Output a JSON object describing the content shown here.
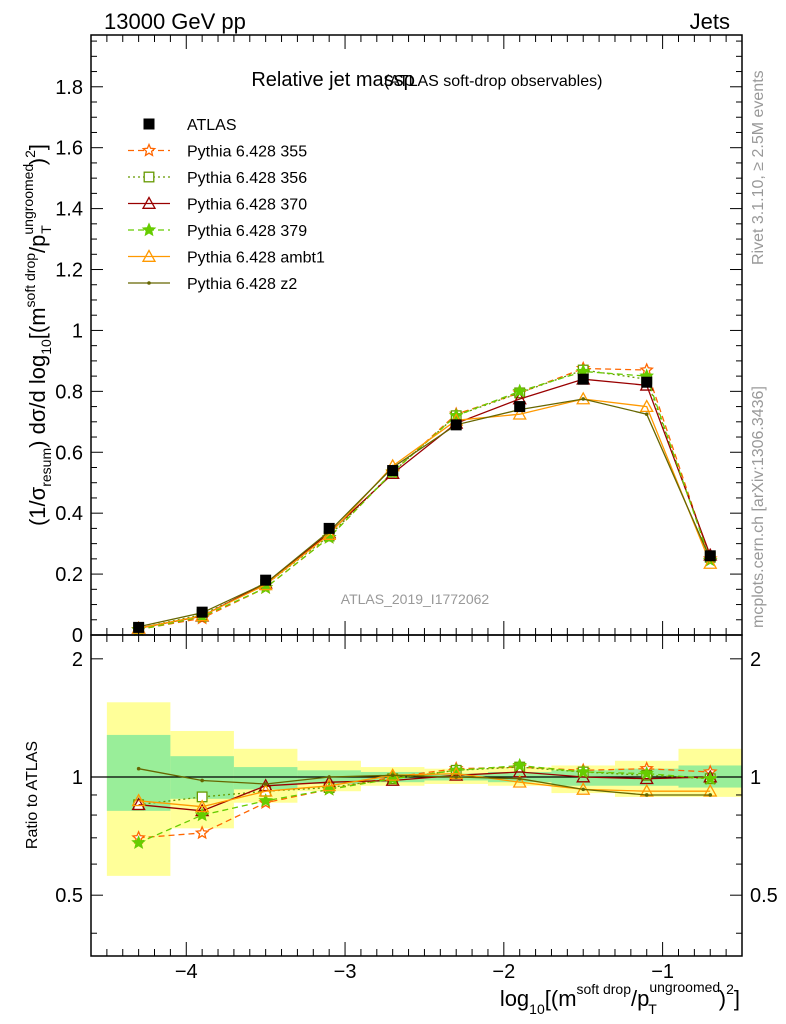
{
  "header": {
    "left": "13000 GeV pp",
    "right": "Jets"
  },
  "title": {
    "main": "Relative jet massρ",
    "sub": "(ATLAS soft-drop observables)"
  },
  "side_labels": {
    "rivet": "Rivet 3.1.10, ≥ 2.5M events",
    "mcplots": "mcplots.cern.ch [arXiv:1306.3436]"
  },
  "watermark": "ATLAS_2019_I1772062",
  "axes": {
    "ylabel": {
      "a": "(1/σ",
      "a_sub": "resum",
      "b": ") dσ/d log",
      "b_sub": "10",
      "c": "[(m",
      "c_sup": "soft drop",
      "d": "/p",
      "d_sup": "ungroomed",
      "d_sub": "T",
      "e": ")",
      "e_sup": "2",
      "f": "]"
    },
    "xlabel": {
      "a": "log",
      "a_sub": "10",
      "b": "[(m",
      "b_sup": "soft drop",
      "c": "/p",
      "c_sup": "ungroomed",
      "c_sub": "T",
      "d": ")",
      "d_sup": "2",
      "e": "]"
    },
    "ratio_ylabel": "Ratio to ATLAS",
    "main_yticks": [
      "0",
      "0.2",
      "0.4",
      "0.6",
      "0.8",
      "1",
      "1.2",
      "1.4",
      "1.6",
      "1.8"
    ],
    "ratio_yticks": [
      "0.5",
      "1",
      "2"
    ],
    "xticks": [
      "−4",
      "−3",
      "−2",
      "−1"
    ]
  },
  "chart_data": {
    "type": "line",
    "x": [
      -4.3,
      -3.9,
      -3.5,
      -3.1,
      -2.7,
      -2.3,
      -1.9,
      -1.5,
      -1.1,
      -0.7
    ],
    "bin_edges": [
      -4.5,
      -4.1,
      -3.7,
      -3.3,
      -2.9,
      -2.5,
      -2.1,
      -1.7,
      -1.3,
      -0.9,
      -0.5
    ],
    "xlim": [
      -4.6,
      -0.5
    ],
    "ylim": [
      0,
      1.97
    ],
    "ratio_ylim": [
      0.35,
      2.3
    ],
    "ratio_log_scale": true,
    "data": {
      "name": "ATLAS",
      "values": [
        0.025,
        0.075,
        0.18,
        0.35,
        0.54,
        0.69,
        0.75,
        0.84,
        0.83,
        0.26
      ]
    },
    "ratio_bands": {
      "inner_green": [
        [
          0.82,
          1.28
        ],
        [
          0.88,
          1.13
        ],
        [
          0.93,
          1.06
        ],
        [
          0.96,
          1.04
        ],
        [
          0.97,
          1.03
        ],
        [
          0.98,
          1.02
        ],
        [
          0.97,
          1.03
        ],
        [
          0.95,
          1.04
        ],
        [
          0.95,
          1.05
        ],
        [
          0.94,
          1.07
        ]
      ],
      "outer_yellow": [
        [
          0.56,
          1.55
        ],
        [
          0.74,
          1.31
        ],
        [
          0.86,
          1.18
        ],
        [
          0.92,
          1.1
        ],
        [
          0.95,
          1.06
        ],
        [
          0.96,
          1.05
        ],
        [
          0.95,
          1.06
        ],
        [
          0.91,
          1.07
        ],
        [
          0.89,
          1.1
        ],
        [
          0.89,
          1.18
        ]
      ]
    },
    "series": [
      {
        "name": "Pythia 6.428 355",
        "color": "#ff6600",
        "marker": "star",
        "dash": "6,4",
        "values": [
          0.018,
          0.055,
          0.155,
          0.32,
          0.535,
          0.725,
          0.795,
          0.875,
          0.87,
          0.25
        ],
        "ratio": [
          0.7,
          0.72,
          0.86,
          0.93,
          1.0,
          1.05,
          1.06,
          1.04,
          1.05,
          1.03
        ]
      },
      {
        "name": "Pythia 6.428 356",
        "color": "#669900",
        "marker": "open-square",
        "dash": "2,3",
        "values": [
          0.022,
          0.067,
          0.165,
          0.325,
          0.535,
          0.72,
          0.795,
          0.87,
          0.84,
          0.255
        ],
        "ratio": [
          0.85,
          0.89,
          0.92,
          0.94,
          0.99,
          1.04,
          1.06,
          1.03,
          1.01,
          0.99
        ]
      },
      {
        "name": "Pythia 6.428 370",
        "color": "#990000",
        "marker": "open-triangle",
        "dash": "",
        "values": [
          0.022,
          0.062,
          0.17,
          0.335,
          0.53,
          0.695,
          0.775,
          0.84,
          0.82,
          0.262
        ],
        "ratio": [
          0.85,
          0.82,
          0.95,
          0.97,
          0.98,
          1.01,
          1.03,
          1.0,
          0.99,
          1.0
        ]
      },
      {
        "name": "Pythia 6.428 379",
        "color": "#66cc00",
        "marker": "star-filled",
        "dash": "6,4",
        "values": [
          0.017,
          0.06,
          0.155,
          0.32,
          0.535,
          0.72,
          0.8,
          0.865,
          0.85,
          0.245
        ],
        "ratio": [
          0.68,
          0.8,
          0.87,
          0.93,
          0.99,
          1.04,
          1.07,
          1.03,
          1.02,
          0.99
        ]
      },
      {
        "name": "Pythia 6.428 ambt1",
        "color": "#ff9900",
        "marker": "open-triangle",
        "dash": "",
        "values": [
          0.022,
          0.063,
          0.165,
          0.33,
          0.555,
          0.705,
          0.725,
          0.775,
          0.75,
          0.235
        ],
        "ratio": [
          0.87,
          0.84,
          0.92,
          0.95,
          1.01,
          1.02,
          0.97,
          0.93,
          0.92,
          0.92
        ]
      },
      {
        "name": "Pythia 6.428 z2",
        "color": "#666600",
        "marker": "dot",
        "dash": "",
        "values": [
          0.027,
          0.073,
          0.17,
          0.34,
          0.55,
          0.69,
          0.74,
          0.775,
          0.725,
          0.25
        ],
        "ratio": [
          1.05,
          0.98,
          0.96,
          1.0,
          1.01,
          1.0,
          0.99,
          0.93,
          0.9,
          0.9
        ]
      }
    ]
  }
}
